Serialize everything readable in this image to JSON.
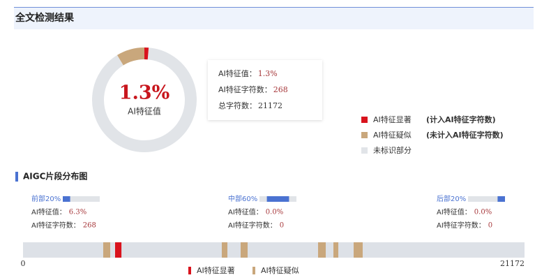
{
  "header": {
    "title": "全文检测结果"
  },
  "overview": {
    "ring": {
      "center_value": "1.3%",
      "center_label": "AI特征值",
      "segments": [
        {
          "name": "AI特征显著",
          "note": "(计入AI特征字符数)",
          "value": 1.3,
          "color": "#d9131d"
        },
        {
          "name": "AI特征疑似",
          "note": "(未计入AI特征字符数)",
          "value": 8.7,
          "color": "#c9a77c"
        },
        {
          "name": "未标识部分",
          "value": 90,
          "color": "#e1e4e8"
        }
      ]
    },
    "stats": [
      {
        "label": "AI特征值：",
        "value": "1.3%"
      },
      {
        "label": "AI特征字符数：",
        "value": "268"
      },
      {
        "label": "总字符数：",
        "value": "21172"
      }
    ]
  },
  "distribution": {
    "title": "AIGC片段分布图",
    "track_lim": [
      0,
      100
    ],
    "parts": [
      {
        "label": "前部20%",
        "range": [
          0,
          20
        ],
        "stats": [
          {
            "label": "AI特征值：",
            "value": "6.3%"
          },
          {
            "label": "AI特征字符数：",
            "value": "268"
          }
        ]
      },
      {
        "label": "中部60%",
        "range": [
          20,
          80
        ],
        "stats": [
          {
            "label": "AI特征值：",
            "value": "0.0%"
          },
          {
            "label": "AI特征字符数：",
            "value": "0"
          }
        ]
      },
      {
        "label": "后部20%",
        "range": [
          80,
          100
        ],
        "stats": [
          {
            "label": "AI特征值：",
            "value": "0.0%"
          },
          {
            "label": "AI特征字符数：",
            "value": "0"
          }
        ]
      }
    ],
    "xlim": [
      0,
      21172
    ],
    "spans": [
      {
        "start": 3386,
        "end": 3681,
        "color": "#c9a77c"
      },
      {
        "start": 3887,
        "end": 4155,
        "color": "#d9131d"
      },
      {
        "start": 8392,
        "end": 8628,
        "color": "#c9a77c"
      },
      {
        "start": 9187,
        "end": 9482,
        "color": "#c9a77c"
      },
      {
        "start": 12456,
        "end": 12780,
        "color": "#c9a77c"
      },
      {
        "start": 13104,
        "end": 13310,
        "color": "#c9a77c"
      },
      {
        "start": 13958,
        "end": 14340,
        "color": "#c9a77c"
      }
    ],
    "legend": [
      {
        "name": "AI特征显著",
        "color": "#d9131d"
      },
      {
        "name": "AI特征疑似",
        "color": "#c9a77c"
      }
    ]
  }
}
